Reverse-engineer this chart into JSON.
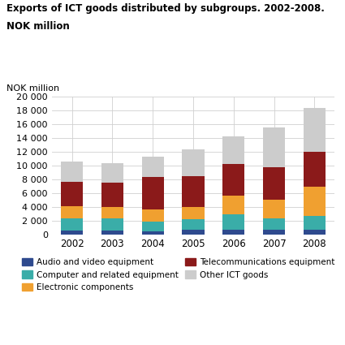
{
  "title_line1": "Exports of ICT goods distributed by subgroups. 2002-2008.",
  "title_line2": "NOK million",
  "ylabel": "NOK million",
  "years": [
    2002,
    2003,
    2004,
    2005,
    2006,
    2007,
    2008
  ],
  "categories": [
    "Audio and video equipment",
    "Computer and related equipment",
    "Electronic components",
    "Telecommunications equipment",
    "Other ICT goods"
  ],
  "colors": [
    "#2e4a8e",
    "#3aada8",
    "#f0a030",
    "#8b1a1a",
    "#cccccc"
  ],
  "data": {
    "Audio and video equipment": [
      600,
      600,
      500,
      700,
      700,
      700,
      700
    ],
    "Computer and related equipment": [
      1700,
      1700,
      1400,
      1500,
      2200,
      1700,
      2000
    ],
    "Electronic components": [
      1800,
      1700,
      1800,
      1800,
      2700,
      2700,
      4200
    ],
    "Telecommunications equipment": [
      3500,
      3500,
      4600,
      4500,
      4600,
      4700,
      5100
    ],
    "Other ICT goods": [
      3000,
      2800,
      3000,
      3800,
      4000,
      5700,
      6300
    ]
  },
  "ylim": [
    0,
    20000
  ],
  "yticks": [
    0,
    2000,
    4000,
    6000,
    8000,
    10000,
    12000,
    14000,
    16000,
    18000,
    20000
  ],
  "background_color": "#ffffff",
  "grid_color": "#d0d0d0",
  "legend_order": [
    "Audio and video equipment",
    "Computer and related equipment",
    "Electronic components",
    "Telecommunications equipment",
    "Other ICT goods"
  ]
}
